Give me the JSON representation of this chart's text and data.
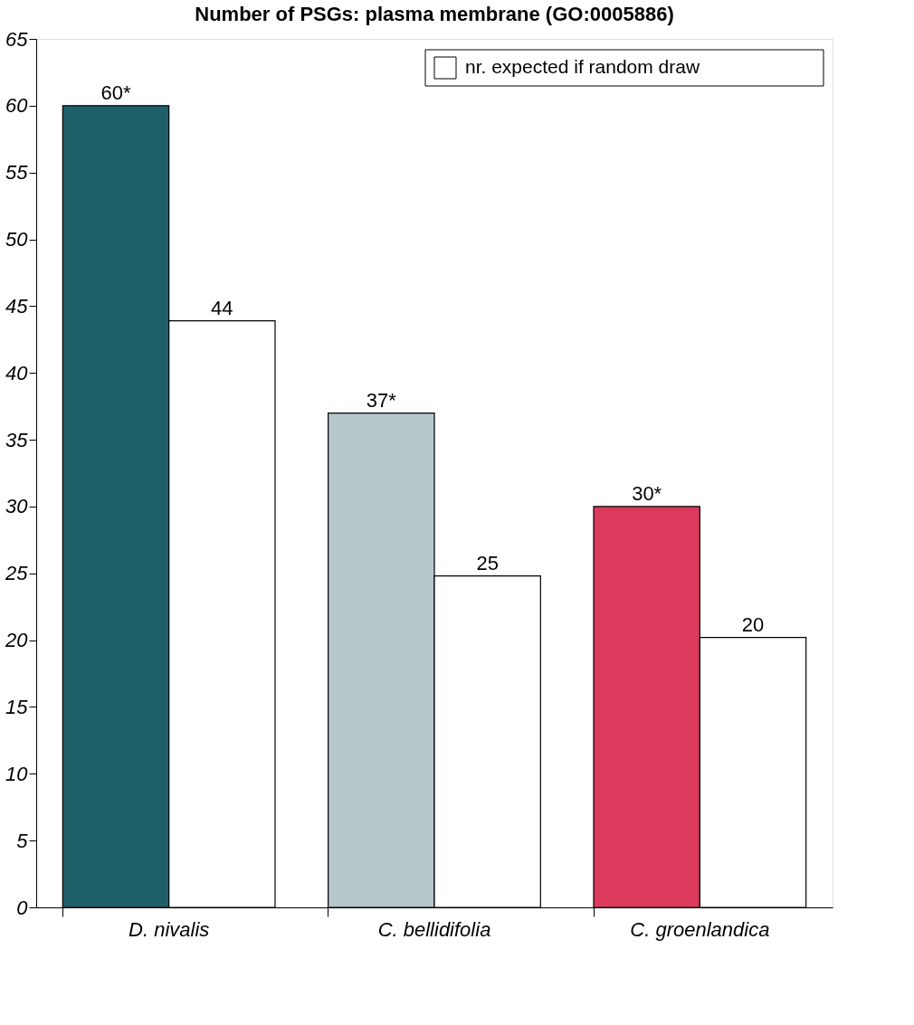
{
  "chart_data": {
    "type": "bar",
    "title": "Number of PSGs: plasma membrane (GO:0005886)",
    "categories": [
      "D. nivalis",
      "C. bellidifolia",
      "C. groenlandica"
    ],
    "series": [
      {
        "colors": [
          "#1f6068",
          "#b5c7cb",
          "#dc3a5c"
        ],
        "values": [
          60,
          37,
          30
        ],
        "value_labels": [
          "60*",
          "37*",
          "30*"
        ]
      },
      {
        "name": "nr. expected if random draw",
        "color": "#ffffff",
        "values": [
          43.9,
          24.8,
          20.2
        ],
        "value_labels": [
          "44",
          "25",
          "20"
        ]
      }
    ],
    "ylim": [
      0,
      65
    ],
    "yticks": [
      0,
      5,
      10,
      15,
      20,
      25,
      30,
      35,
      40,
      45,
      50,
      55,
      60,
      65
    ],
    "grid": false,
    "legend": "top right"
  }
}
